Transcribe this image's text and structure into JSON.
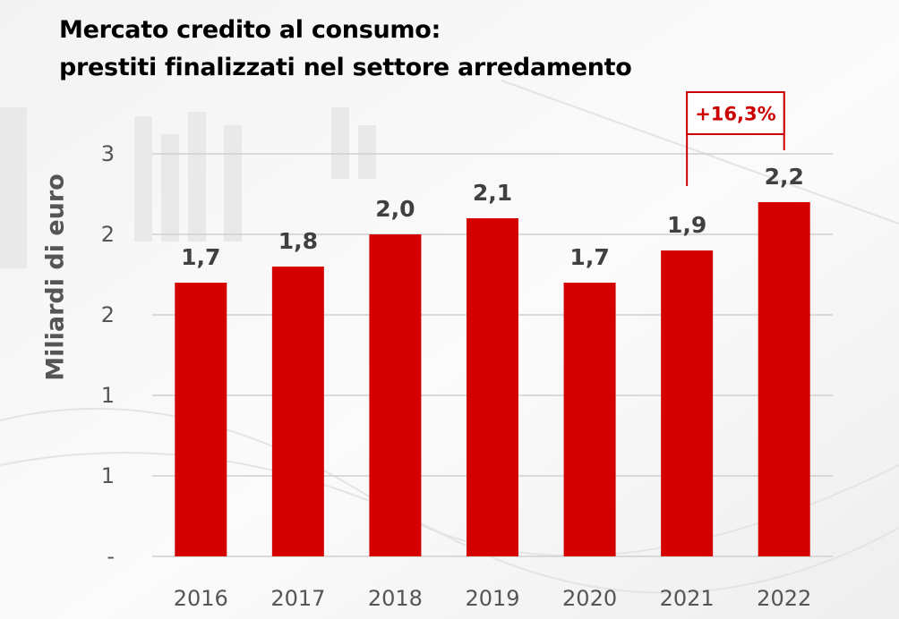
{
  "chart_data": {
    "type": "bar",
    "title": "Mercato credito al consumo:",
    "subtitle": "prestiti finalizzati nel settore arredamento",
    "ylabel": "Miliardi di euro",
    "xlabel": "",
    "categories": [
      "2016",
      "2017",
      "2018",
      "2019",
      "2020",
      "2021",
      "2022"
    ],
    "values": [
      1.7,
      1.8,
      2.0,
      2.1,
      1.7,
      1.9,
      2.2
    ],
    "data_labels": [
      "1,7",
      "1,8",
      "2,0",
      "2,1",
      "1,7",
      "1,9",
      "2,2"
    ],
    "y_tick_labels": [
      "-",
      "1",
      "1",
      "2",
      "2",
      "3"
    ],
    "y_tick_values": [
      0,
      0.5,
      1.0,
      1.5,
      2.0,
      2.5
    ],
    "ylim": [
      0,
      2.5
    ],
    "grid": true,
    "bar_color": "#d40000",
    "annotation": {
      "text": "+16,3%",
      "from_category": "2021",
      "to_category": "2022",
      "color": "#cc0000"
    }
  }
}
